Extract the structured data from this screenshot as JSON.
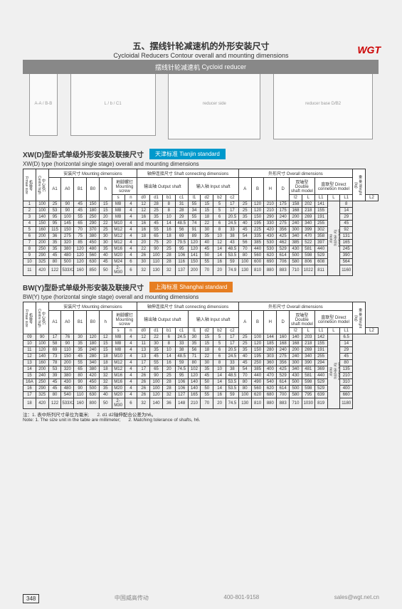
{
  "logo": "WGT",
  "headerBar": {
    "cn": "摆线针轮减速机",
    "en": "Cycloid reducer"
  },
  "title": {
    "cn": "五、摆线针轮减速机的外形安装尺寸",
    "en": "Cycloidal Reducers Contour overall and mounting dimensions"
  },
  "diagramLabels": [
    "A-A / B-B",
    "L / b / C1",
    "reducer side",
    "reducer base D/B2"
  ],
  "section1": {
    "titleCn": "XW(D)型卧式单级外形安装及联接尺寸",
    "badge": "天津标准 Tianjin standard",
    "sub": "XW(D) type (horizontal single stage) overall and mounting dimensions",
    "groupHeaders": [
      "安装尺寸 Mounting dimensions",
      "轴伸连接尺寸\nShaft connecting dimensions",
      "外形尺寸 Overall dimensions"
    ],
    "subGroups": [
      "地脚螺钉\nMounting screw",
      "输出轴\nOutput shaft",
      "输入轴\nInput shaft",
      "",
      "双轴型\nDouble shaft model",
      "直联型\nDirect connetion model"
    ],
    "cornerLabels": [
      "机座号\nFrmae size",
      "中心高C\nCentre high",
      "重 量\nWeight (kg)",
      "电机件另计加重量\nSe overall dimensions for electric motor"
    ],
    "cols": [
      "A1",
      "A0",
      "B1",
      "B0",
      "h",
      "s",
      "n",
      "d0",
      "d1",
      "b1",
      "c1",
      "l1",
      "d2",
      "b2",
      "c2",
      "l2",
      "A",
      "B",
      "H",
      "D",
      "L",
      "L1",
      "L",
      "L1",
      "L2"
    ],
    "rows": [
      [
        "1",
        "100",
        "25",
        "90",
        "45",
        "150",
        "15",
        "M8",
        "4",
        "12",
        "28",
        "8",
        "31",
        "55",
        "15",
        "5",
        "17",
        "25",
        "120",
        "210",
        "175",
        "158",
        "202",
        "141",
        "",
        "8"
      ],
      [
        "2",
        "100",
        "53",
        "90",
        "45",
        "180",
        "15",
        "M8",
        "4",
        "12",
        "25",
        "8",
        "28",
        "34",
        "15",
        "5",
        "17",
        "25",
        "120",
        "210",
        "175",
        "168",
        "218",
        "155",
        "",
        "14"
      ],
      [
        "3",
        "140",
        "95",
        "100",
        "55",
        "250",
        "20",
        "M8",
        "4",
        "16",
        "35",
        "10",
        "29",
        "55",
        "18",
        "6",
        "20.5",
        "35",
        "150",
        "290",
        "240",
        "200",
        "269",
        "191",
        "",
        "29"
      ],
      [
        "4",
        "150",
        "95",
        "145",
        "65",
        "290",
        "22",
        "M10",
        "4",
        "16",
        "45",
        "14",
        "48.5",
        "74",
        "22",
        "6",
        "24.5",
        "40",
        "195",
        "330",
        "275",
        "240",
        "340",
        "255",
        "",
        "45"
      ],
      [
        "5",
        "160",
        "115",
        "150",
        "70",
        "370",
        "25",
        "M12",
        "4",
        "16",
        "55",
        "16",
        "56",
        "91",
        "30",
        "8",
        "33",
        "45",
        "225",
        "420",
        "356",
        "300",
        "399",
        "302",
        "",
        "92"
      ],
      [
        "6",
        "200",
        "36",
        "275",
        "75",
        "380",
        "30",
        "M12",
        "4",
        "18",
        "65",
        "18",
        "69",
        "89",
        "35",
        "10",
        "38",
        "54",
        "335",
        "430",
        "425",
        "340",
        "470",
        "358",
        "",
        "131"
      ],
      [
        "7",
        "200",
        "35",
        "320",
        "85",
        "450",
        "30",
        "M12",
        "4",
        "20",
        "75",
        "20",
        "79.5",
        "120",
        "40",
        "12",
        "43",
        "56",
        "385",
        "530",
        "462",
        "385",
        "522",
        "397",
        "",
        "165"
      ],
      [
        "8",
        "250",
        "35",
        "380",
        "120",
        "480",
        "35",
        "M16",
        "4",
        "22",
        "90",
        "25",
        "95",
        "120",
        "45",
        "14",
        "48.5",
        "70",
        "440",
        "530",
        "529",
        "430",
        "581",
        "440",
        "",
        "245"
      ],
      [
        "9",
        "290",
        "45",
        "480",
        "120",
        "560",
        "40",
        "M20",
        "4",
        "26",
        "100",
        "28",
        "106",
        "141",
        "50",
        "14",
        "53.5",
        "80",
        "560",
        "620",
        "614",
        "500",
        "598",
        "529",
        "",
        "390"
      ],
      [
        "10",
        "325",
        "80",
        "500",
        "120",
        "630",
        "45",
        "M24",
        "6",
        "30",
        "110",
        "28",
        "116",
        "150",
        "55",
        "16",
        "59",
        "100",
        "600",
        "690",
        "706",
        "580",
        "806",
        "608",
        "",
        "564"
      ],
      [
        "11",
        "420",
        "122",
        "533X2",
        "160",
        "850",
        "50",
        "2-M30",
        "6",
        "32",
        "130",
        "32",
        "137",
        "200",
        "70",
        "20",
        "74.9",
        "130",
        "810",
        "880",
        "883",
        "710",
        "1022",
        "811",
        "",
        "1160"
      ]
    ]
  },
  "section2": {
    "titleCn": "BW(Y)型卧式单级外形安装及联接尺寸",
    "badge": "上海标准 Shanghai standard",
    "sub": "BW(Y) type (horizontal single stage) overall and mounting dimensions",
    "rows": [
      [
        "09",
        "90",
        "17",
        "76",
        "30",
        "120",
        "12",
        "M8",
        "4",
        "12",
        "22",
        "6",
        "24.5",
        "30",
        "15",
        "5",
        "17",
        "25",
        "100",
        "144",
        "160",
        "140",
        "203",
        "142",
        "",
        "6.5"
      ],
      [
        "10",
        "100",
        "58",
        "90",
        "35",
        "180",
        "15",
        "M8",
        "4",
        "11",
        "30",
        "8",
        "33",
        "35",
        "15",
        "5",
        "17",
        "25",
        "120",
        "185",
        "168",
        "168",
        "218",
        "155",
        "",
        "14"
      ],
      [
        "11",
        "120",
        "69",
        "110",
        "35",
        "240",
        "15",
        "M8",
        "4",
        "13",
        "35",
        "10",
        "38",
        "56",
        "18",
        "6",
        "20.5",
        "35",
        "150",
        "280",
        "240",
        "200",
        "269",
        "191",
        "",
        "29"
      ],
      [
        "12",
        "140",
        "73",
        "150",
        "45",
        "280",
        "18",
        "M10",
        "4",
        "13",
        "45",
        "14",
        "48.5",
        "71",
        "22",
        "6",
        "24.5",
        "40",
        "195",
        "303",
        "275",
        "240",
        "340",
        "255",
        "",
        "45"
      ],
      [
        "13",
        "160",
        "78",
        "200",
        "55",
        "340",
        "18",
        "M12",
        "4",
        "17",
        "55",
        "16",
        "59",
        "80",
        "30",
        "8",
        "33",
        "45",
        "250",
        "360",
        "356",
        "300",
        "390",
        "294",
        "",
        "80"
      ],
      [
        "14",
        "200",
        "53",
        "320",
        "65",
        "380",
        "18",
        "M12",
        "4",
        "17",
        "65",
        "20",
        "74.5",
        "102",
        "35",
        "10",
        "38",
        "54",
        "385",
        "400",
        "425",
        "340",
        "481",
        "369",
        "",
        "135"
      ],
      [
        "15",
        "240",
        "39",
        "380",
        "80",
        "420",
        "32",
        "M16",
        "4",
        "26",
        "90",
        "25",
        "95",
        "120",
        "45",
        "14",
        "48.5",
        "70",
        "440",
        "470",
        "529",
        "430",
        "581",
        "440",
        "",
        "210"
      ],
      [
        "16A",
        "250",
        "45",
        "430",
        "90",
        "450",
        "32",
        "M16",
        "4",
        "26",
        "100",
        "28",
        "106",
        "140",
        "50",
        "14",
        "53.5",
        "80",
        "490",
        "540",
        "614",
        "500",
        "598",
        "529",
        "",
        "310"
      ],
      [
        "16",
        "290",
        "45",
        "480",
        "90",
        "500",
        "35",
        "M20",
        "4",
        "26",
        "100",
        "28",
        "106",
        "140",
        "50",
        "14",
        "53.5",
        "80",
        "560",
        "620",
        "614",
        "500",
        "598",
        "529",
        "",
        "400"
      ],
      [
        "17",
        "325",
        "80",
        "540",
        "110",
        "630",
        "40",
        "M20",
        "4",
        "26",
        "120",
        "32",
        "127",
        "165",
        "55",
        "16",
        "59",
        "100",
        "620",
        "680",
        "700",
        "580",
        "795",
        "639",
        "",
        "660"
      ],
      [
        "18",
        "420",
        "122",
        "533X2",
        "160",
        "800",
        "50",
        "2-M30",
        "6",
        "32",
        "140",
        "36",
        "148",
        "210",
        "70",
        "20",
        "74.5",
        "130",
        "810",
        "880",
        "883",
        "710",
        "1030",
        "819",
        "",
        "1180"
      ]
    ]
  },
  "notes": {
    "cn1": "注：1. 表中所列尺寸单位为毫米;",
    "cn2": "2. d1 d2轴伸配合公差为h6。",
    "en1": "Note: 1. The size unit in the table are millimeter;",
    "en2": "2. Matching tolerance of shafts, h6."
  },
  "footer": {
    "page": "348",
    "company": "中国威高传动",
    "phone": "400-801-9158",
    "email": "sales@wgt.net.cn"
  }
}
